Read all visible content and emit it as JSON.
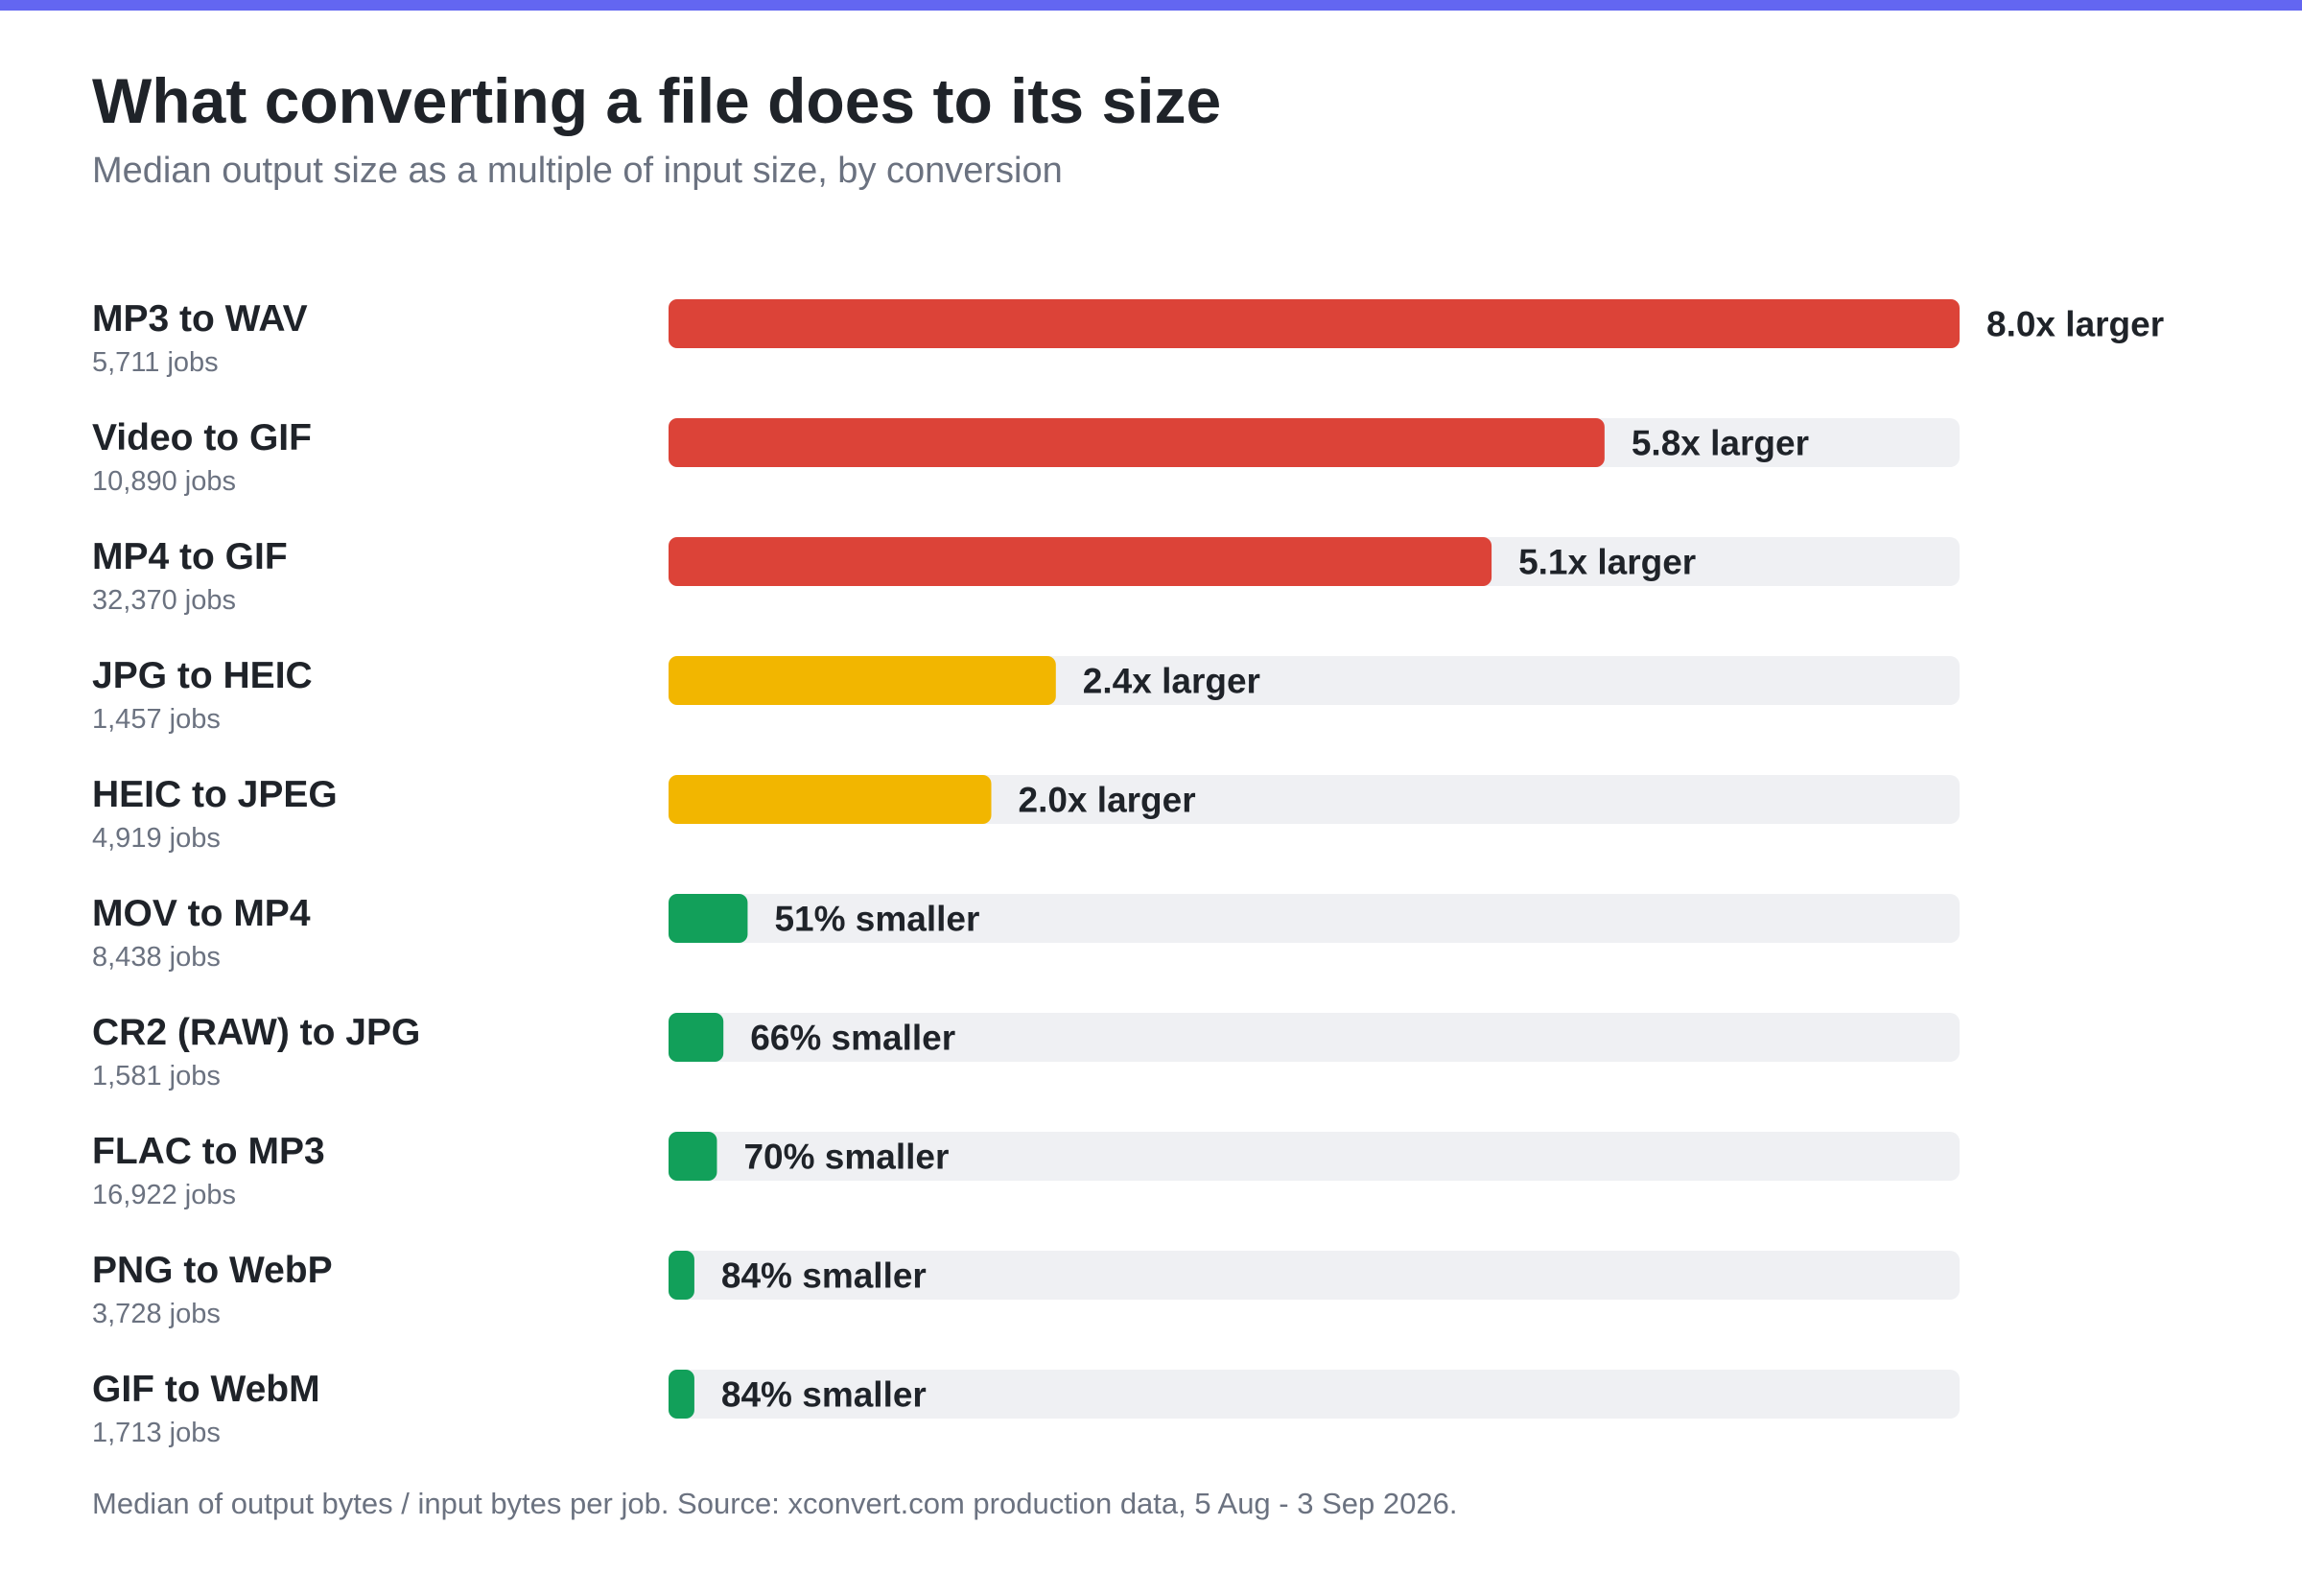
{
  "page": {
    "title": "What converting a file does to its size",
    "subtitle": "Median output size as a multiple of input size, by conversion",
    "source_note": "Median of output bytes / input bytes per job. Source: xconvert.com production data, 5 Aug - 3 Sep 2026."
  },
  "colors": {
    "accent_bar": "#6366f1",
    "larger_high": "#dc4338",
    "larger_mid": "#f2b600",
    "smaller": "#12a05a",
    "track": "#eff0f3",
    "label_text": "#1f2329",
    "muted_text": "#6b7280"
  },
  "chart_data": {
    "type": "bar",
    "orientation": "horizontal",
    "title": "What converting a file does to its size",
    "subtitle": "Median output size as a multiple of input size, by conversion",
    "xlim": [
      0,
      8.0
    ],
    "grid": false,
    "legend": "none",
    "categories": [
      "MP3 to WAV",
      "Video to GIF",
      "MP4 to GIF",
      "JPG to HEIC",
      "HEIC to JPEG",
      "MOV to MP4",
      "CR2 (RAW) to JPG",
      "FLAC to MP3",
      "PNG to WebP",
      "GIF to WebM"
    ],
    "jobs": [
      "5,711 jobs",
      "10,890 jobs",
      "32,370 jobs",
      "1,457 jobs",
      "4,919 jobs",
      "8,438 jobs",
      "1,581 jobs",
      "16,922 jobs",
      "3,728 jobs",
      "1,713 jobs"
    ],
    "values": [
      8.0,
      5.8,
      5.1,
      2.4,
      2.0,
      0.49,
      0.34,
      0.3,
      0.16,
      0.16
    ],
    "value_labels": [
      "8.0x larger",
      "5.8x larger",
      "5.1x larger",
      "2.4x larger",
      "2.0x larger",
      "51% smaller",
      "66% smaller",
      "70% smaller",
      "84% smaller",
      "84% smaller"
    ],
    "bar_colors": [
      "#dc4338",
      "#dc4338",
      "#dc4338",
      "#f2b600",
      "#f2b600",
      "#12a05a",
      "#12a05a",
      "#12a05a",
      "#12a05a",
      "#12a05a"
    ]
  }
}
